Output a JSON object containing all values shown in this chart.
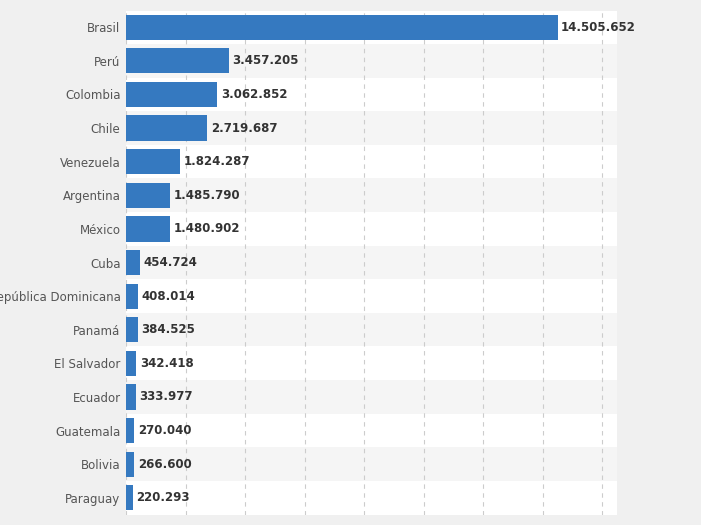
{
  "categories": [
    "Brasil",
    "Perú",
    "Colombia",
    "Chile",
    "Venezuela",
    "Argentina",
    "México",
    "Cuba",
    "República Dominicana",
    "Panamá",
    "El Salvador",
    "Ecuador",
    "Guatemala",
    "Bolivia",
    "Paraguay"
  ],
  "values": [
    14505652,
    3457205,
    3062852,
    2719687,
    1824287,
    1485790,
    1480902,
    454724,
    408014,
    384525,
    342418,
    333977,
    270040,
    266600,
    220293
  ],
  "labels": [
    "14.505.652",
    "3.457.205",
    "3.062.852",
    "2.719.687",
    "1.824.287",
    "1.485.790",
    "1.480.902",
    "454.724",
    "408.014",
    "384.525",
    "342.418",
    "333.977",
    "270.040",
    "266.600",
    "220.293"
  ],
  "bar_color": "#3579c0",
  "background_color": "#f0f0f0",
  "plot_background_color": "#f5f5f5",
  "row_alt_color": "#ffffff",
  "label_color": "#555555",
  "value_color": "#333333",
  "grid_color": "#cccccc",
  "xlim": [
    0,
    16500000
  ],
  "bar_height": 0.75,
  "label_fontsize": 8.5,
  "value_fontsize": 8.5,
  "grid_xticks": [
    0,
    2000000,
    4000000,
    6000000,
    8000000,
    10000000,
    12000000,
    14000000,
    16000000
  ]
}
